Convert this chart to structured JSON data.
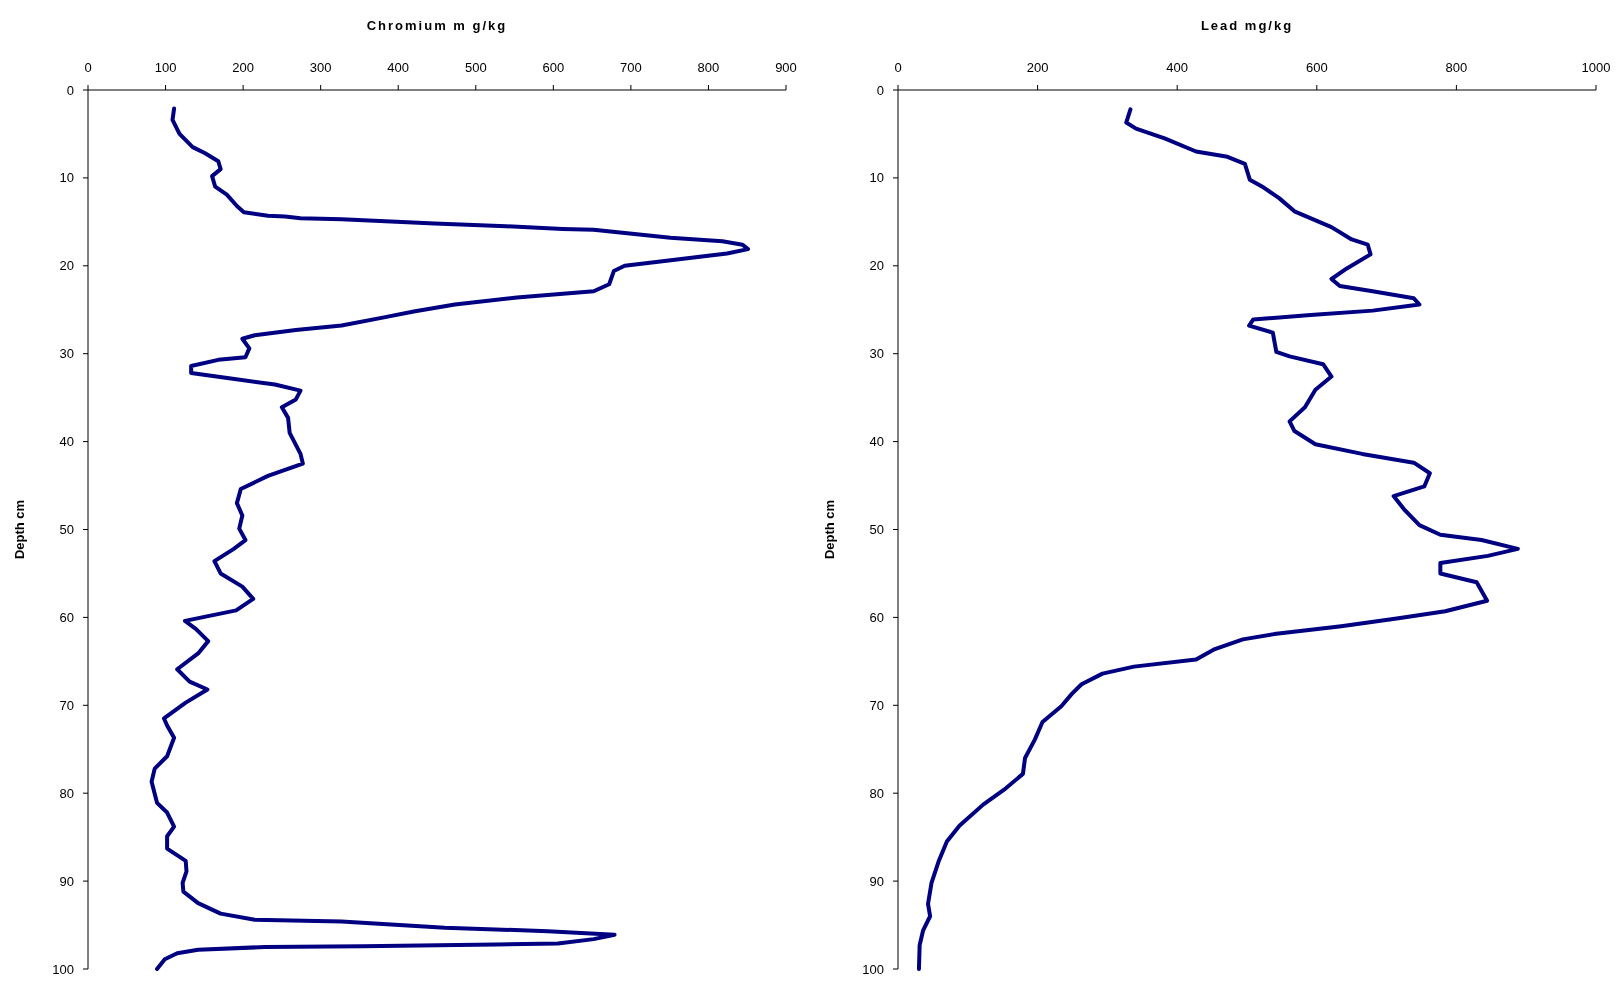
{
  "chart_data": [
    {
      "type": "line",
      "xlabel": "Chromium m g/kg",
      "ylabel": "Depth cm",
      "xlim": [
        0,
        900
      ],
      "xticks": [
        0,
        100,
        200,
        300,
        400,
        500,
        600,
        700,
        800,
        900
      ],
      "ylim": [
        100,
        0
      ],
      "yticks": [
        0,
        10,
        20,
        30,
        40,
        50,
        60,
        70,
        80,
        90,
        100
      ],
      "series": [
        {
          "color": "#000080",
          "x": [
            111,
            109,
            118,
            135,
            151,
            168,
            171,
            160,
            164,
            179,
            192,
            201,
            232,
            254,
            274,
            327,
            447,
            539,
            612,
            652,
            751,
            818,
            844,
            851,
            824,
            738,
            692,
            678,
            672,
            652,
            553,
            473,
            420,
            380,
            327,
            268,
            215,
            199,
            208,
            203,
            168,
            133,
            133,
            182,
            241,
            274,
            268,
            250,
            258,
            260,
            274,
            277,
            232,
            197,
            192,
            199,
            195,
            203,
            188,
            163,
            171,
            199,
            213,
            191,
            125,
            139,
            155,
            142,
            115,
            131,
            154,
            126,
            98,
            102,
            111,
            102,
            86,
            82,
            89,
            102,
            111,
            102,
            102,
            126,
            127,
            122,
            123,
            142,
            171,
            215,
            327,
            460,
            593,
            679,
            652,
            606,
            526,
            354,
            228,
            142,
            115,
            99,
            89
          ],
          "values": [
            2.1,
            3.4,
            5,
            6.5,
            7.2,
            8.1,
            9,
            9.8,
            11,
            11.9,
            13.2,
            13.9,
            14.3,
            14.4,
            14.6,
            14.7,
            15.2,
            15.5,
            15.8,
            15.9,
            16.8,
            17.2,
            17.6,
            18.1,
            18.6,
            19.5,
            20,
            20.6,
            22.1,
            22.9,
            23.6,
            24.4,
            25.2,
            25.9,
            26.8,
            27.3,
            27.9,
            28.3,
            29.4,
            30.4,
            30.7,
            31.4,
            32.2,
            32.8,
            33.5,
            34.2,
            35.2,
            36.1,
            37.3,
            39,
            41.4,
            42.5,
            43.9,
            45.4,
            47,
            48.4,
            49.9,
            51.2,
            52.2,
            53.6,
            55,
            56.5,
            57.9,
            59.2,
            60.4,
            61.3,
            62.7,
            64.1,
            65.9,
            67.3,
            68.2,
            69.7,
            71.5,
            72.3,
            73.7,
            75.8,
            77.2,
            78.7,
            81.1,
            82.2,
            83.8,
            84.9,
            86.3,
            87.7,
            88.9,
            90.2,
            91.2,
            92.5,
            93.7,
            94.4,
            94.6,
            95.3,
            95.7,
            96.1,
            96.6,
            97.1,
            97.2,
            97.4,
            97.5,
            97.8,
            98.2,
            98.9,
            100
          ]
        }
      ]
    },
    {
      "type": "line",
      "xlabel": "Lead mg/kg",
      "ylabel": "Depth cm",
      "xlim": [
        0,
        1000
      ],
      "xticks": [
        0,
        200,
        400,
        600,
        800,
        1000
      ],
      "ylim": [
        100,
        0
      ],
      "yticks": [
        0,
        10,
        20,
        30,
        40,
        50,
        60,
        70,
        80,
        90,
        100
      ],
      "series": [
        {
          "color": "#000080",
          "x": [
            333,
            327,
            341,
            382,
            427,
            472,
            497,
            504,
            524,
            546,
            568,
            621,
            650,
            673,
            677,
            643,
            621,
            633,
            680,
            739,
            747,
            680,
            591,
            509,
            503,
            537,
            542,
            561,
            609,
            621,
            598,
            583,
            561,
            568,
            598,
            665,
            739,
            762,
            754,
            710,
            725,
            747,
            777,
            836,
            888,
            845,
            777,
            777,
            829,
            844,
            784,
            717,
            635,
            539,
            494,
            454,
            427,
            338,
            293,
            263,
            249,
            234,
            207,
            196,
            182,
            179,
            152,
            122,
            88,
            70,
            58,
            48,
            43,
            46,
            36,
            31,
            30
          ],
          "values": [
            2.2,
            3.7,
            4.4,
            5.5,
            7,
            7.6,
            8.4,
            10.2,
            11.1,
            12.3,
            13.8,
            15.6,
            17,
            17.6,
            18.7,
            20.3,
            21.5,
            22.3,
            22.9,
            23.7,
            24.4,
            25.1,
            25.6,
            26.1,
            26.8,
            27.6,
            29.8,
            30.3,
            31.2,
            32.6,
            34.1,
            36.1,
            37.7,
            38.8,
            40.3,
            41.4,
            42.4,
            43.6,
            45.1,
            46.2,
            47.7,
            49.5,
            50.6,
            51.2,
            52.2,
            53,
            53.8,
            55,
            56,
            58.1,
            59.3,
            60.1,
            61,
            61.9,
            62.5,
            63.6,
            64.8,
            65.6,
            66.4,
            67.6,
            68.7,
            70.1,
            71.9,
            73.9,
            76,
            77.8,
            79.6,
            81.3,
            83.7,
            85.5,
            87.8,
            90.2,
            92.6,
            94,
            95.6,
            97.3,
            100
          ]
        }
      ]
    }
  ]
}
